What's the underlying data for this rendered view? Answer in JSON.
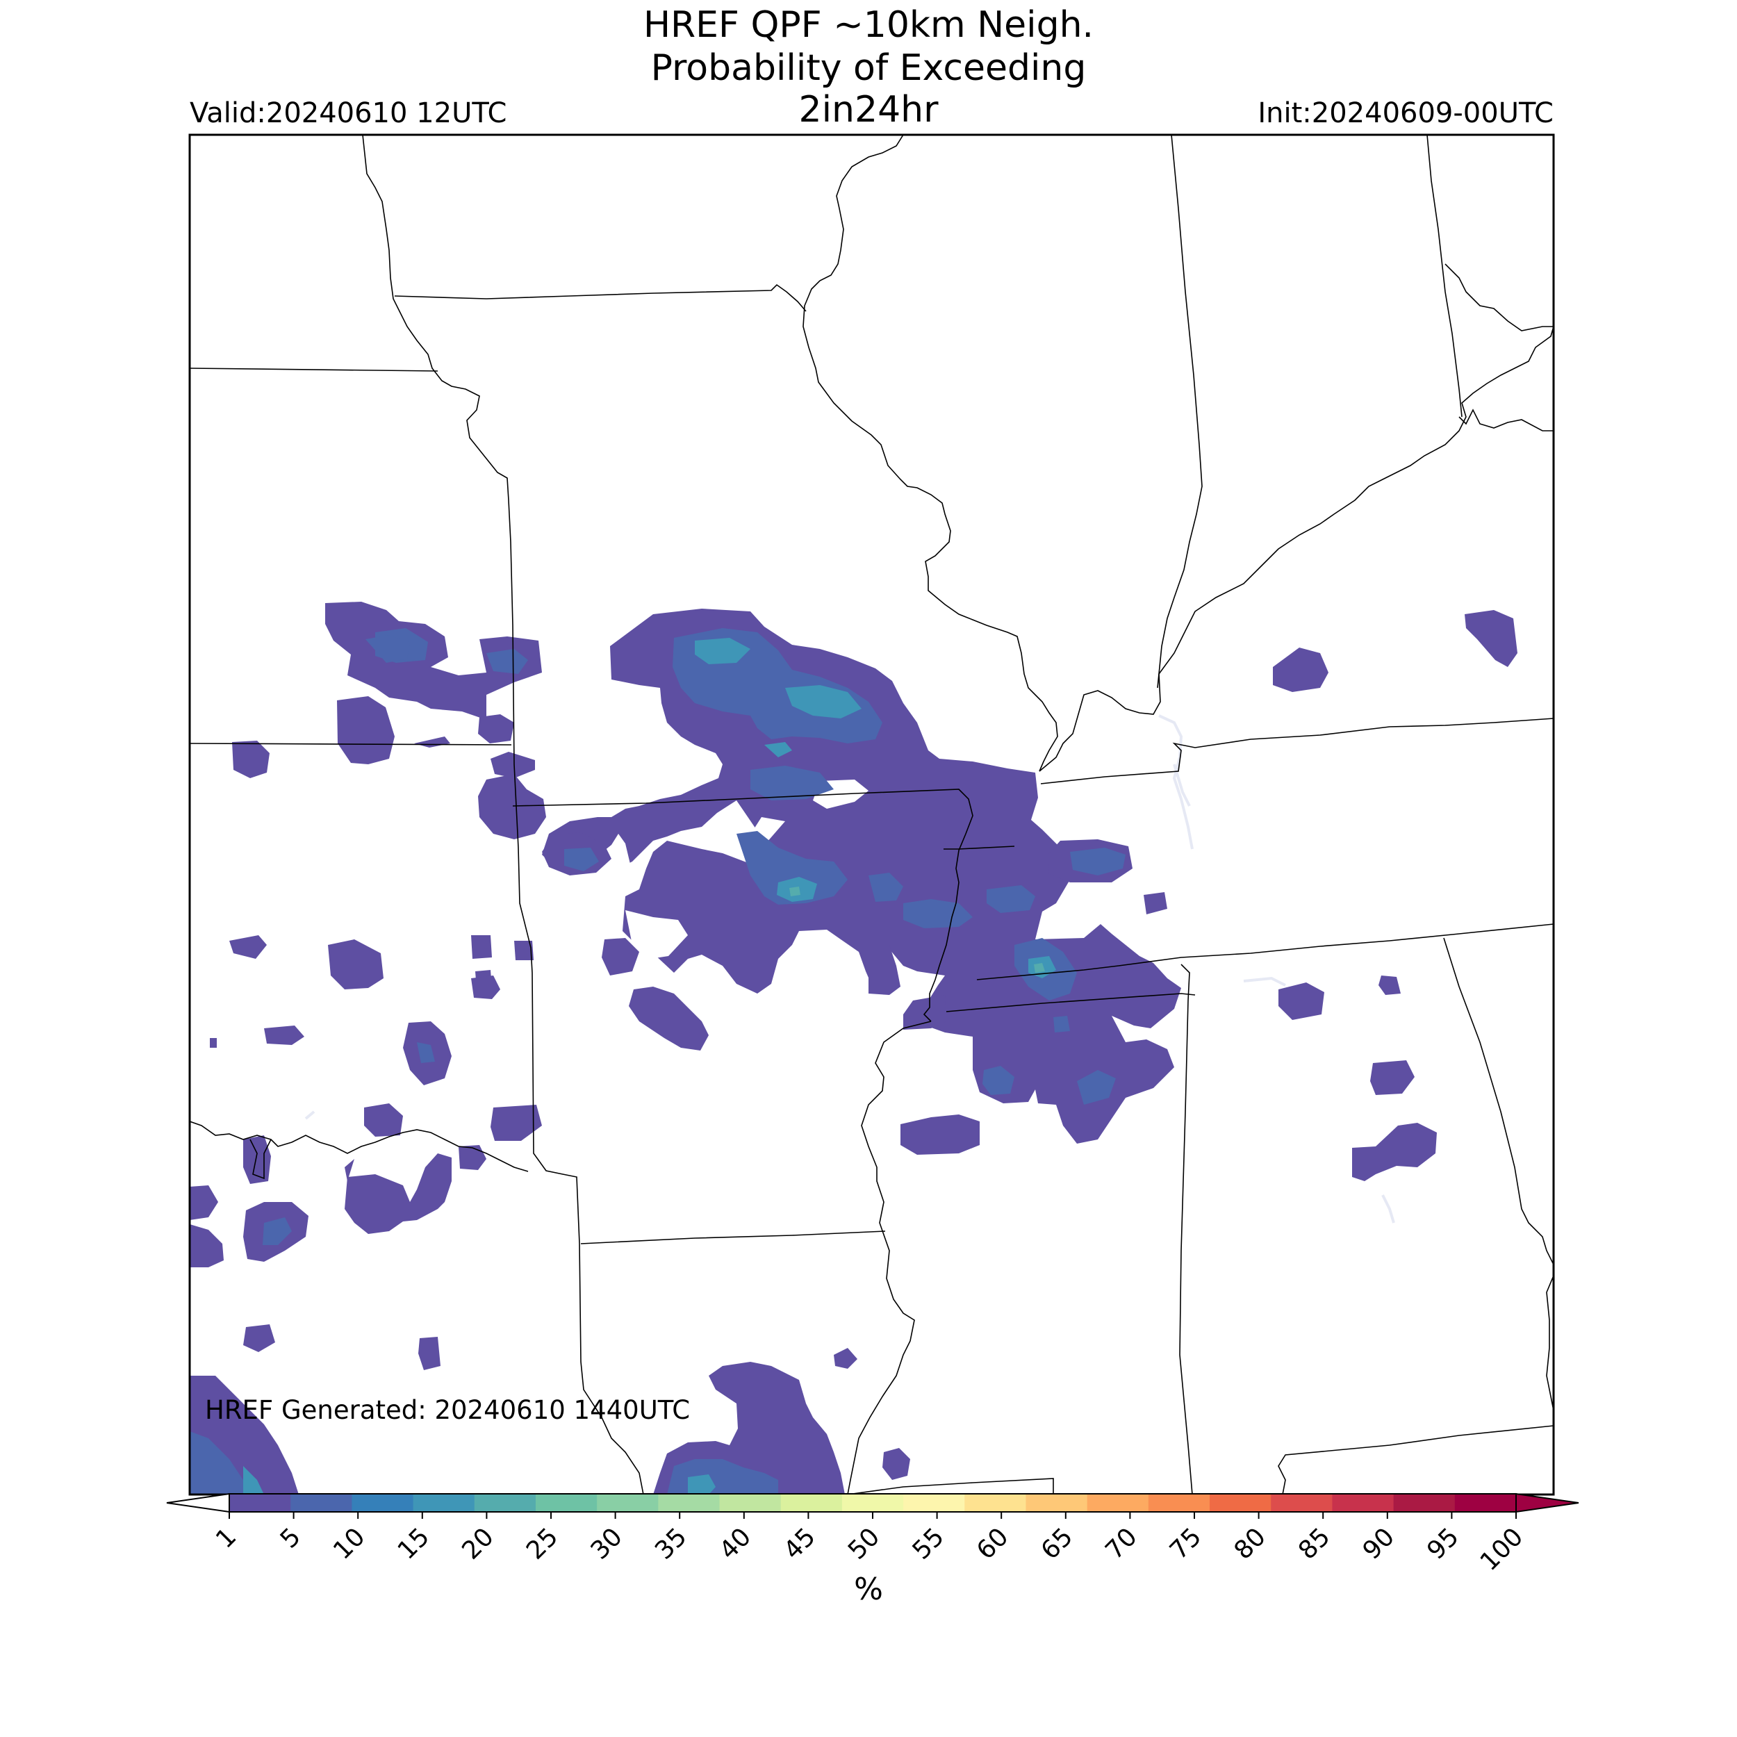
{
  "title_lines": [
    "HREF QPF ~10km Neigh.",
    "Probability of Exceeding",
    "2in24hr"
  ],
  "valid_label": "Valid:20240610 12UTC",
  "init_label": "Init:20240609-00UTC",
  "generated_label": "HREF Generated: 20240610 1440UTC",
  "colorbar": {
    "unit": "%",
    "ticks": [
      "1",
      "5",
      "10",
      "15",
      "20",
      "25",
      "30",
      "35",
      "40",
      "45",
      "50",
      "55",
      "60",
      "65",
      "70",
      "75",
      "80",
      "85",
      "90",
      "95",
      "100"
    ],
    "colors": [
      "#5e4fa2",
      "#4b66ad",
      "#3580b9",
      "#3f96b7",
      "#55acad",
      "#6ec2a5",
      "#89cfa5",
      "#a5dba4",
      "#c1e6a0",
      "#dbf19e",
      "#f0f8a9",
      "#fdf5ad",
      "#fee290",
      "#fec877",
      "#fdaa61",
      "#f98e52",
      "#ef6b45",
      "#dd4d4c",
      "#c8324c",
      "#aa1a44",
      "#9e0142"
    ],
    "extend_low_color": "#ffffff",
    "extend_high_color": "#9e0142"
  },
  "colors": {
    "prob_1_5": "#5e4fa2",
    "prob_5_10": "#4b66ad",
    "prob_10_15": "#3580b9",
    "prob_15_20": "#3f96b7",
    "prob_20_25": "#55acad",
    "water": "#e6e9f4"
  }
}
